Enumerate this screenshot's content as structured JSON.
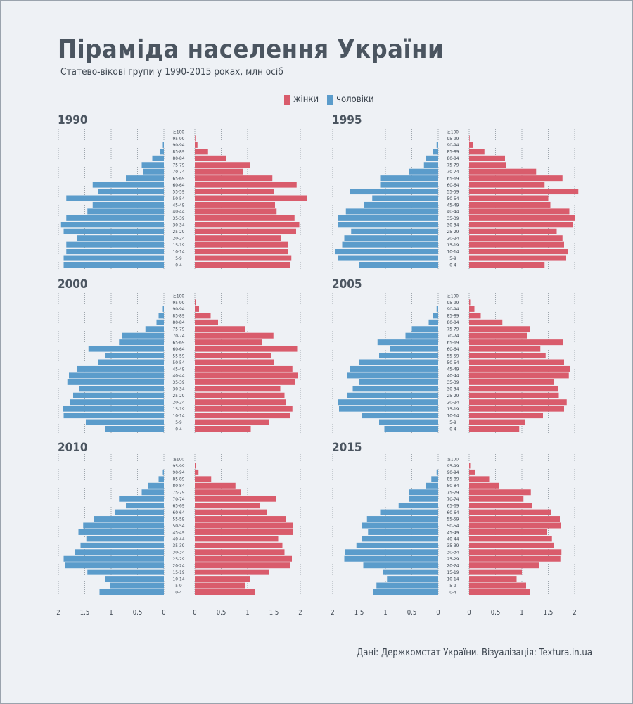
{
  "title": "Піраміда населення України",
  "subtitle": "Статево-вікові групи у 1990-2015 роках, млн осіб",
  "legend": {
    "women": "жінки",
    "men": "чоловіки"
  },
  "source": "Дані: Держкомстат України. Візуалізація: Textura.in.ua",
  "colors": {
    "women": "#d95c6c",
    "men": "#5b9ccb",
    "background": "#eef1f5",
    "grid": "#8a939c"
  },
  "chart_data": {
    "type": "bar",
    "orientation": "horizontal-pyramid",
    "age_groups": [
      "0-4",
      "5-9",
      "10-14",
      "15-19",
      "20-24",
      "25-29",
      "30-34",
      "35-39",
      "40-44",
      "45-49",
      "50-54",
      "55-59",
      "60-64",
      "65-69",
      "70-74",
      "75-79",
      "80-84",
      "85-89",
      "90-94",
      "95-99",
      "≥100"
    ],
    "axis_ticks": [
      "2",
      "1.5",
      "1",
      "0.5",
      "0"
    ],
    "axis_ticks_right": [
      "0",
      "0.5",
      "1",
      "1.5",
      "2"
    ],
    "xlim": [
      0,
      2
    ],
    "panels": [
      {
        "year": "1990",
        "men": [
          1.9,
          1.9,
          1.85,
          1.85,
          1.65,
          1.9,
          1.95,
          1.85,
          1.45,
          1.35,
          1.85,
          1.25,
          1.35,
          0.72,
          0.4,
          0.42,
          0.22,
          0.08,
          0.02,
          0.0,
          0.0
        ],
        "women": [
          1.8,
          1.83,
          1.77,
          1.77,
          1.63,
          1.92,
          1.98,
          1.89,
          1.55,
          1.52,
          2.12,
          1.5,
          1.93,
          1.47,
          0.92,
          1.05,
          0.6,
          0.25,
          0.05,
          0.01,
          0.0
        ]
      },
      {
        "year": "1995",
        "men": [
          1.5,
          1.9,
          1.95,
          1.82,
          1.78,
          1.65,
          1.9,
          1.9,
          1.75,
          1.4,
          1.25,
          1.68,
          1.1,
          1.1,
          0.55,
          0.27,
          0.24,
          0.1,
          0.03,
          0.0,
          0.0
        ],
        "women": [
          1.43,
          1.84,
          1.88,
          1.8,
          1.77,
          1.66,
          1.96,
          2.0,
          1.9,
          1.54,
          1.5,
          2.07,
          1.43,
          1.77,
          1.27,
          0.7,
          0.68,
          0.29,
          0.08,
          0.01,
          0.0
        ]
      },
      {
        "year": "2000",
        "men": [
          1.12,
          1.48,
          1.9,
          1.92,
          1.78,
          1.72,
          1.6,
          1.83,
          1.8,
          1.65,
          1.25,
          1.12,
          1.43,
          0.85,
          0.8,
          0.35,
          0.14,
          0.1,
          0.02,
          0.0,
          0.0
        ],
        "women": [
          1.06,
          1.4,
          1.8,
          1.85,
          1.72,
          1.7,
          1.62,
          1.9,
          1.95,
          1.85,
          1.5,
          1.44,
          1.94,
          1.28,
          1.49,
          0.96,
          0.44,
          0.3,
          0.08,
          0.02,
          0.0
        ]
      },
      {
        "year": "2005",
        "men": [
          1.02,
          1.12,
          1.45,
          1.88,
          1.9,
          1.72,
          1.62,
          1.5,
          1.72,
          1.68,
          1.5,
          1.12,
          0.92,
          1.15,
          0.62,
          0.5,
          0.18,
          0.1,
          0.03,
          0.0,
          0.0
        ],
        "women": [
          0.95,
          1.06,
          1.4,
          1.8,
          1.85,
          1.7,
          1.68,
          1.6,
          1.89,
          1.92,
          1.8,
          1.45,
          1.35,
          1.78,
          1.1,
          1.15,
          0.63,
          0.22,
          0.1,
          0.02,
          0.0
        ]
      },
      {
        "year": "2010",
        "men": [
          1.22,
          1.02,
          1.12,
          1.45,
          1.88,
          1.9,
          1.68,
          1.58,
          1.47,
          1.62,
          1.53,
          1.33,
          0.93,
          0.72,
          0.85,
          0.42,
          0.3,
          0.1,
          0.02,
          0.0,
          0.0
        ],
        "women": [
          1.14,
          0.96,
          1.05,
          1.4,
          1.8,
          1.84,
          1.7,
          1.66,
          1.58,
          1.86,
          1.86,
          1.73,
          1.36,
          1.23,
          1.54,
          0.87,
          0.77,
          0.31,
          0.07,
          0.02,
          0.0
        ]
      },
      {
        "year": "2015",
        "men": [
          1.23,
          1.17,
          0.97,
          1.05,
          1.42,
          1.78,
          1.77,
          1.55,
          1.45,
          1.33,
          1.45,
          1.35,
          1.1,
          0.75,
          0.55,
          0.55,
          0.24,
          0.13,
          0.03,
          0.0,
          0.0
        ],
        "women": [
          1.15,
          1.08,
          0.9,
          1.0,
          1.33,
          1.73,
          1.75,
          1.6,
          1.57,
          1.48,
          1.74,
          1.72,
          1.56,
          1.2,
          1.03,
          1.17,
          0.56,
          0.38,
          0.11,
          0.02,
          0.0
        ]
      }
    ]
  }
}
